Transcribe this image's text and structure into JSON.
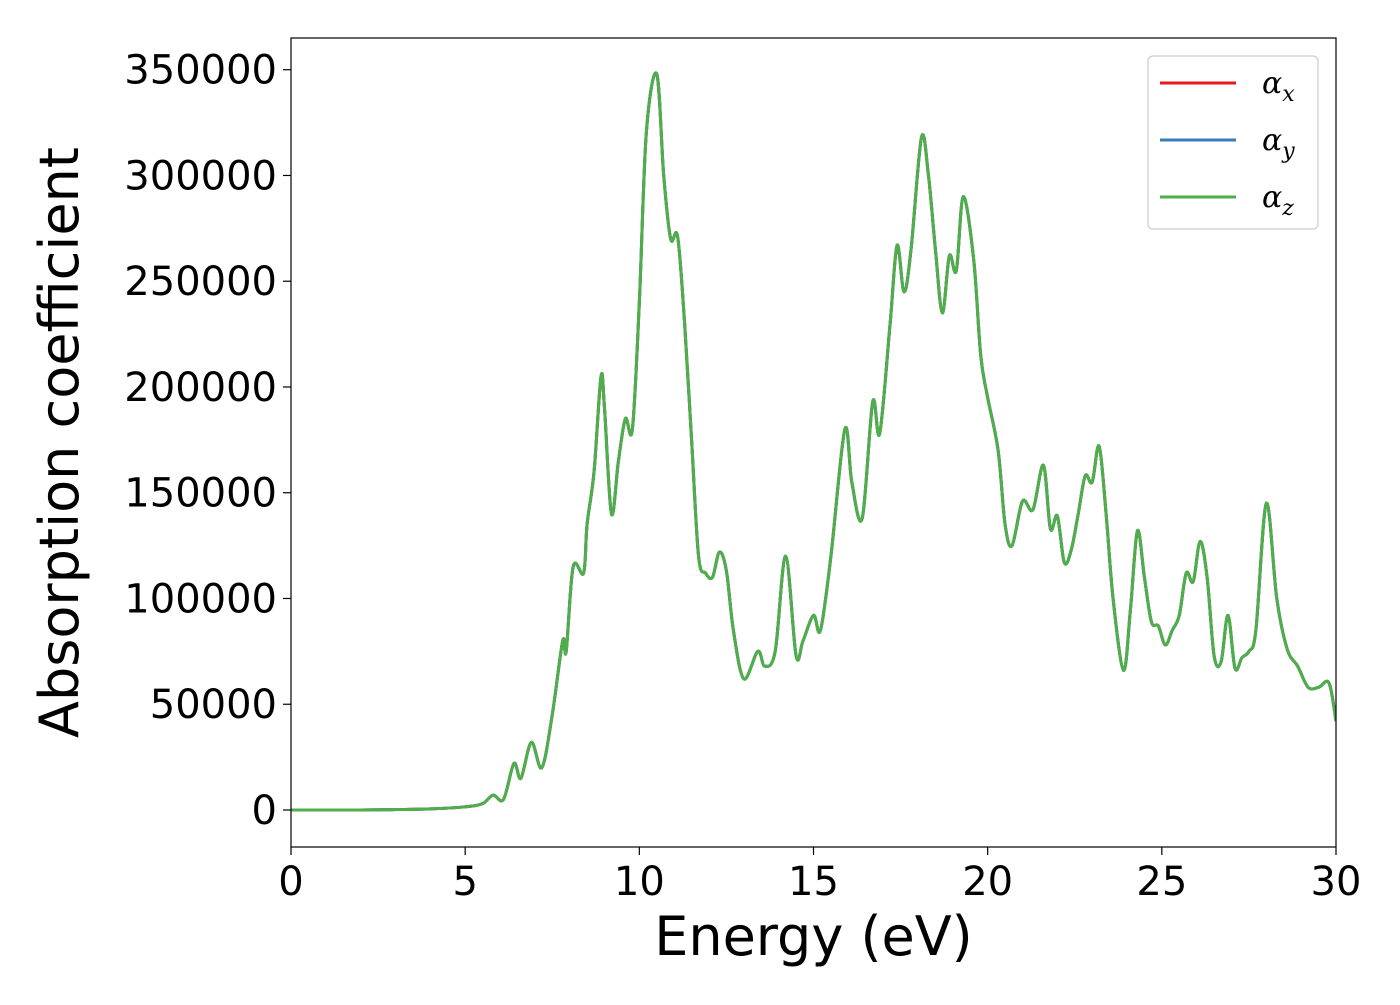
{
  "chart_data": {
    "type": "line",
    "title": "",
    "xlabel": "Energy (eV)",
    "ylabel": "Absorption coefficient",
    "xlim": [
      0,
      30
    ],
    "ylim": [
      -17500,
      365000
    ],
    "xticks": [
      0,
      5,
      10,
      15,
      20,
      25,
      30
    ],
    "yticks": [
      0,
      50000,
      100000,
      150000,
      200000,
      250000,
      300000,
      350000
    ],
    "grid": false,
    "legend_position": "top-right",
    "x": [
      0,
      1,
      2,
      3,
      4,
      5,
      5.5,
      5.8,
      6.1,
      6.4,
      6.6,
      6.9,
      7.2,
      7.5,
      7.8,
      7.9,
      8.1,
      8.4,
      8.5,
      8.7,
      8.9,
      9.0,
      9.2,
      9.4,
      9.6,
      9.8,
      10.0,
      10.2,
      10.5,
      10.7,
      10.9,
      11.1,
      11.3,
      11.5,
      11.7,
      11.9,
      12.1,
      12.3,
      12.5,
      12.7,
      13.0,
      13.4,
      13.6,
      13.9,
      14.2,
      14.5,
      14.7,
      15.0,
      15.2,
      15.5,
      15.9,
      16.1,
      16.4,
      16.7,
      16.9,
      17.2,
      17.4,
      17.6,
      17.8,
      18.1,
      18.3,
      18.5,
      18.7,
      18.9,
      19.1,
      19.3,
      19.6,
      19.8,
      20.0,
      20.3,
      20.5,
      20.7,
      21.0,
      21.3,
      21.6,
      21.8,
      22.0,
      22.2,
      22.4,
      22.6,
      22.8,
      23.0,
      23.2,
      23.4,
      23.6,
      23.9,
      24.1,
      24.3,
      24.5,
      24.7,
      24.9,
      25.1,
      25.3,
      25.5,
      25.7,
      25.9,
      26.1,
      26.3,
      26.5,
      26.7,
      26.9,
      27.1,
      27.3,
      27.5,
      27.7,
      28.0,
      28.3,
      28.6,
      28.9,
      29.2,
      29.5,
      29.8,
      30.0
    ],
    "series": [
      {
        "name": "α_x",
        "label_base": "α",
        "label_sub": "x",
        "color": "#e41a1c",
        "y": [
          0,
          0,
          0,
          200,
          500,
          1500,
          3000,
          7000,
          5000,
          22000,
          15000,
          32000,
          20000,
          45000,
          80000,
          75000,
          115000,
          112000,
          135000,
          160000,
          205000,
          190000,
          140000,
          165000,
          185000,
          180000,
          240000,
          320000,
          348000,
          300000,
          270000,
          271000,
          230000,
          175000,
          120000,
          112000,
          110000,
          122000,
          113000,
          85000,
          62000,
          75000,
          68000,
          75000,
          120000,
          73000,
          80000,
          92000,
          85000,
          120000,
          180000,
          155000,
          138000,
          193000,
          178000,
          230000,
          267000,
          245000,
          265000,
          318000,
          300000,
          265000,
          235000,
          262000,
          255000,
          290000,
          260000,
          215000,
          195000,
          170000,
          135000,
          125000,
          146000,
          142000,
          163000,
          133000,
          139000,
          117000,
          123000,
          140000,
          158000,
          155000,
          172000,
          140000,
          100000,
          66000,
          95000,
          132000,
          110000,
          89000,
          87000,
          78000,
          85000,
          92000,
          112000,
          108000,
          127000,
          110000,
          73000,
          70000,
          92000,
          67000,
          72000,
          75000,
          85000,
          145000,
          100000,
          76000,
          68000,
          58000,
          58000,
          60000,
          42000
        ]
      },
      {
        "name": "α_y",
        "label_base": "α",
        "label_sub": "y",
        "color": "#377eb8",
        "y": [
          0,
          0,
          0,
          200,
          500,
          1500,
          3000,
          7000,
          5000,
          22000,
          15000,
          32000,
          20000,
          45000,
          80000,
          75000,
          115000,
          112000,
          135000,
          160000,
          205000,
          190000,
          140000,
          165000,
          185000,
          180000,
          240000,
          320000,
          348000,
          300000,
          270000,
          271000,
          230000,
          175000,
          120000,
          112000,
          110000,
          122000,
          113000,
          85000,
          62000,
          75000,
          68000,
          75000,
          120000,
          73000,
          80000,
          92000,
          85000,
          120000,
          180000,
          155000,
          138000,
          193000,
          178000,
          230000,
          267000,
          245000,
          265000,
          318000,
          300000,
          265000,
          235000,
          262000,
          255000,
          290000,
          260000,
          215000,
          195000,
          170000,
          135000,
          125000,
          146000,
          142000,
          163000,
          133000,
          139000,
          117000,
          123000,
          140000,
          158000,
          155000,
          172000,
          140000,
          100000,
          66000,
          95000,
          132000,
          110000,
          89000,
          87000,
          78000,
          85000,
          92000,
          112000,
          108000,
          127000,
          110000,
          73000,
          70000,
          92000,
          67000,
          72000,
          75000,
          85000,
          145000,
          100000,
          76000,
          68000,
          58000,
          58000,
          60000,
          42000
        ]
      },
      {
        "name": "α_z",
        "label_base": "α",
        "label_sub": "z",
        "color": "#4daf4a",
        "y": [
          0,
          0,
          0,
          200,
          500,
          1500,
          3000,
          7000,
          5000,
          22000,
          15000,
          32000,
          20000,
          45000,
          80000,
          75000,
          115000,
          112000,
          135000,
          160000,
          205000,
          190000,
          140000,
          165000,
          185000,
          180000,
          240000,
          320000,
          348000,
          300000,
          270000,
          271000,
          230000,
          175000,
          120000,
          112000,
          110000,
          122000,
          113000,
          85000,
          62000,
          75000,
          68000,
          75000,
          120000,
          73000,
          80000,
          92000,
          85000,
          120000,
          180000,
          155000,
          138000,
          193000,
          178000,
          230000,
          267000,
          245000,
          265000,
          318000,
          300000,
          265000,
          235000,
          262000,
          255000,
          290000,
          260000,
          215000,
          195000,
          170000,
          135000,
          125000,
          146000,
          142000,
          163000,
          133000,
          139000,
          117000,
          123000,
          140000,
          158000,
          155000,
          172000,
          140000,
          100000,
          66000,
          95000,
          132000,
          110000,
          89000,
          87000,
          78000,
          85000,
          92000,
          112000,
          108000,
          127000,
          110000,
          73000,
          70000,
          92000,
          67000,
          72000,
          75000,
          85000,
          145000,
          100000,
          76000,
          68000,
          58000,
          58000,
          60000,
          42000
        ]
      }
    ]
  }
}
